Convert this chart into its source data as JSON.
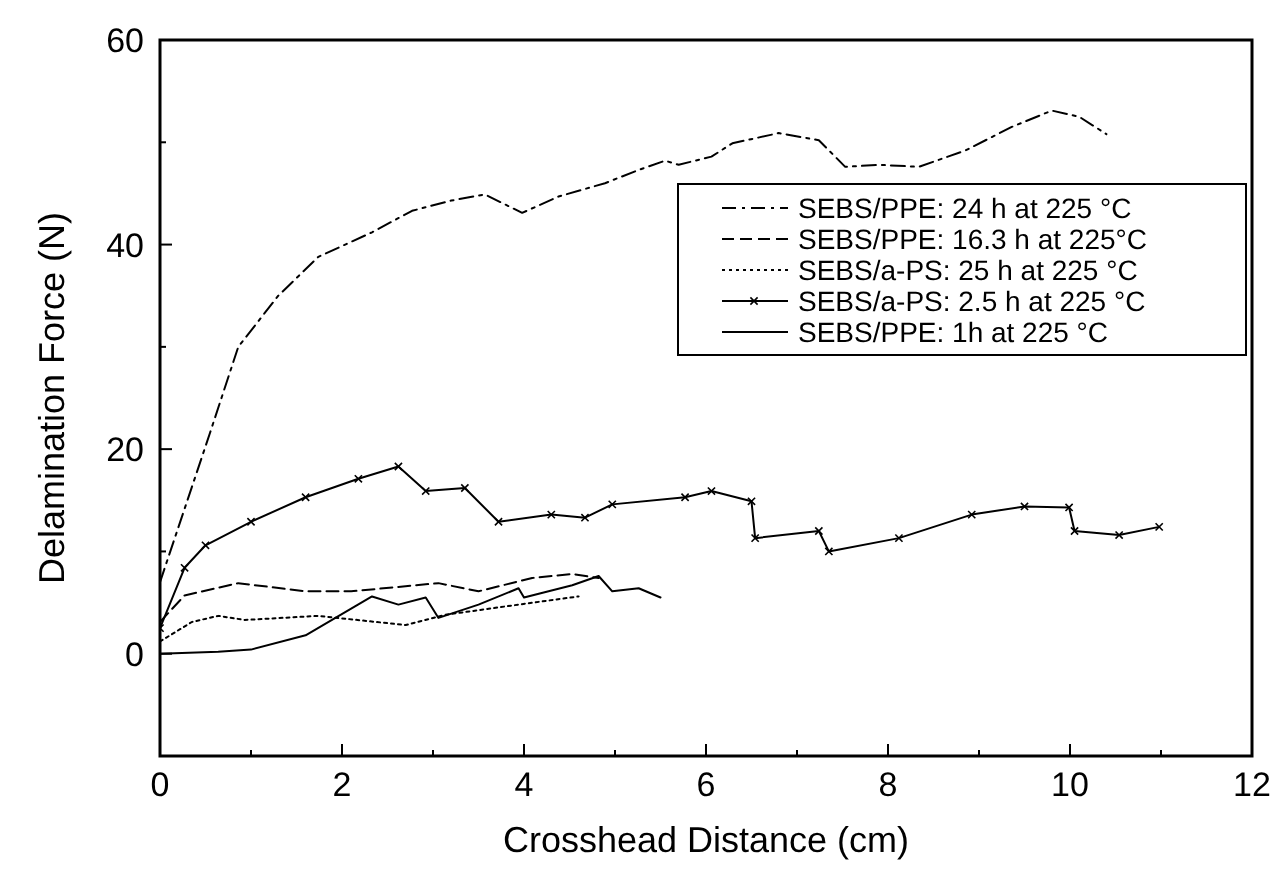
{
  "chart_data": {
    "type": "line",
    "xlabel": "Crosshead Distance (cm)",
    "ylabel": "Delamination Force (N)",
    "xlim": [
      0,
      12
    ],
    "ylim": [
      -10,
      60
    ],
    "xticks": [
      0,
      {
        "value": 1,
        "label": null
      },
      2,
      {
        "value": 3,
        "label": null
      },
      4,
      {
        "value": 5,
        "label": null
      },
      6,
      {
        "value": 7,
        "label": null
      },
      8,
      {
        "value": 9,
        "label": null
      },
      10,
      {
        "value": 11,
        "label": null
      },
      12
    ],
    "yticks": [
      {
        "value": -10,
        "label": null
      },
      0,
      {
        "value": 10,
        "label": null
      },
      20,
      {
        "value": 30,
        "label": null
      },
      40,
      {
        "value": 50,
        "label": null
      },
      60
    ],
    "grid": false,
    "legend": "right",
    "marker": "none",
    "series": [
      {
        "name": "SEBS/PPE: 24 h at 225 °C",
        "color": "#000000",
        "line_style": "dashdot",
        "x": [
          0,
          0.55,
          0.86,
          1.3,
          1.74,
          2.33,
          2.77,
          3.2,
          3.57,
          3.98,
          4.38,
          4.89,
          5.26,
          5.55,
          5.7,
          6.06,
          6.29,
          6.8,
          7.24,
          7.53,
          7.9,
          8.34,
          8.85,
          9.36,
          9.8,
          10.1,
          10.4
        ],
        "values": [
          7,
          21.6,
          30,
          35,
          38.8,
          41.2,
          43.3,
          44.3,
          44.9,
          43.1,
          44.7,
          46,
          47.3,
          48.2,
          47.8,
          48.6,
          49.9,
          50.9,
          50.2,
          47.6,
          47.8,
          47.6,
          49.2,
          51.5,
          53.1,
          52.5,
          50.8
        ]
      },
      {
        "name": "SEBS/PPE: 16.3 h at 225°C",
        "color": "#000000",
        "line_style": "dashed",
        "x": [
          0,
          0.27,
          0.86,
          1.6,
          2.1,
          3.06,
          3.5,
          4.09,
          4.53,
          4.82
        ],
        "values": [
          3.1,
          5.7,
          6.9,
          6.1,
          6.1,
          6.9,
          6.1,
          7.4,
          7.8,
          7.4
        ]
      },
      {
        "name": "SEBS/a-PS: 25 h at 225 °C",
        "color": "#000000",
        "line_style": "dotted",
        "x": [
          0,
          0.35,
          0.64,
          0.93,
          1.74,
          2.7,
          3.13,
          3.94,
          4.6
        ],
        "values": [
          1.2,
          3.1,
          3.7,
          3.3,
          3.7,
          2.8,
          3.8,
          4.8,
          5.6
        ]
      },
      {
        "name": "SEBS/a-PS: 2.5 h at 225 °C",
        "color": "#000000",
        "line_style": "solid",
        "marker": "cross",
        "x": [
          0,
          0.27,
          0.5,
          1.0,
          1.6,
          2.18,
          2.62,
          2.92,
          3.35,
          3.72,
          4.3,
          4.67,
          4.97,
          5.77,
          6.06,
          6.5,
          6.54,
          7.24,
          7.35,
          8.12,
          8.92,
          9.5,
          9.99,
          10.05,
          10.54,
          10.98
        ],
        "values": [
          2.5,
          8.4,
          10.6,
          12.9,
          15.3,
          17.1,
          18.3,
          15.9,
          16.2,
          12.9,
          13.6,
          13.3,
          14.6,
          15.3,
          15.9,
          14.9,
          11.3,
          12,
          10,
          11.3,
          13.6,
          14.4,
          14.3,
          12,
          11.6,
          12.4
        ]
      },
      {
        "name": "SEBS/PPE: 1h at 225 °C",
        "color": "#000000",
        "line_style": "solid",
        "x": [
          0,
          0.64,
          1.0,
          1.6,
          2.33,
          2.62,
          2.92,
          3.06,
          3.5,
          3.94,
          4.0,
          4.53,
          4.82,
          4.97,
          5.26,
          5.5
        ],
        "values": [
          0,
          0.2,
          0.4,
          1.8,
          5.6,
          4.8,
          5.5,
          3.5,
          4.8,
          6.4,
          5.5,
          6.7,
          7.6,
          6.1,
          6.4,
          5.5
        ]
      }
    ]
  }
}
